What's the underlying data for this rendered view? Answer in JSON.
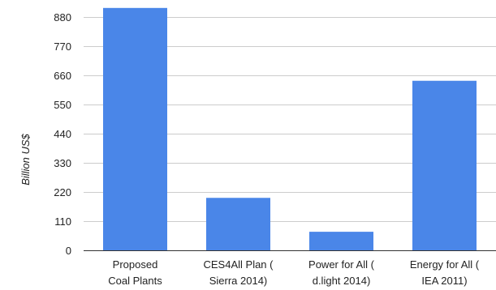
{
  "chart_data": {
    "type": "bar",
    "title": "",
    "xlabel": "",
    "ylabel": "Billion US$",
    "ylim": [
      0,
      945
    ],
    "yticks": [
      0,
      110,
      220,
      330,
      440,
      550,
      660,
      770,
      880
    ],
    "grid": true,
    "legend": "none",
    "bar_color": "#4a86e8",
    "categories": [
      [
        "Proposed",
        "Coal Plants"
      ],
      [
        "CES4All Plan (",
        "Sierra 2014)"
      ],
      [
        "Power for All (",
        "d.light 2014)"
      ],
      [
        "Energy for All (",
        "IEA 2011)"
      ]
    ],
    "values": [
      915,
      198,
      70,
      640
    ]
  }
}
